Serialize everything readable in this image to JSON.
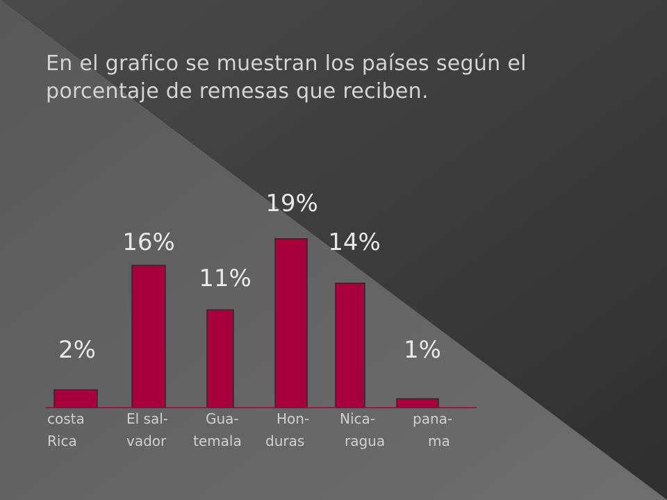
{
  "slide": {
    "title": "En el grafico se muestran los países según el porcentaje de remesas que reciben."
  },
  "colors": {
    "background": "#3a3a3a",
    "bar": "#a8003c",
    "axis": "#a8003c",
    "text": "#d4d4d4"
  },
  "chart_data": {
    "type": "bar",
    "categories": [
      [
        "costa",
        "Rica"
      ],
      [
        "El sal-",
        "vador"
      ],
      [
        "Gua-",
        "temala"
      ],
      [
        "Hon-",
        "duras"
      ],
      [
        "Nica-",
        "ragua"
      ],
      [
        "pana-",
        "ma"
      ]
    ],
    "values": [
      2,
      16,
      11,
      19,
      14,
      1
    ],
    "data_labels": [
      "2%",
      "16%",
      "11%",
      "19%",
      "14%",
      "1%"
    ],
    "title": "",
    "xlabel": "",
    "ylabel": "",
    "ylim": [
      0,
      19
    ],
    "grid": false,
    "legend": "none"
  }
}
